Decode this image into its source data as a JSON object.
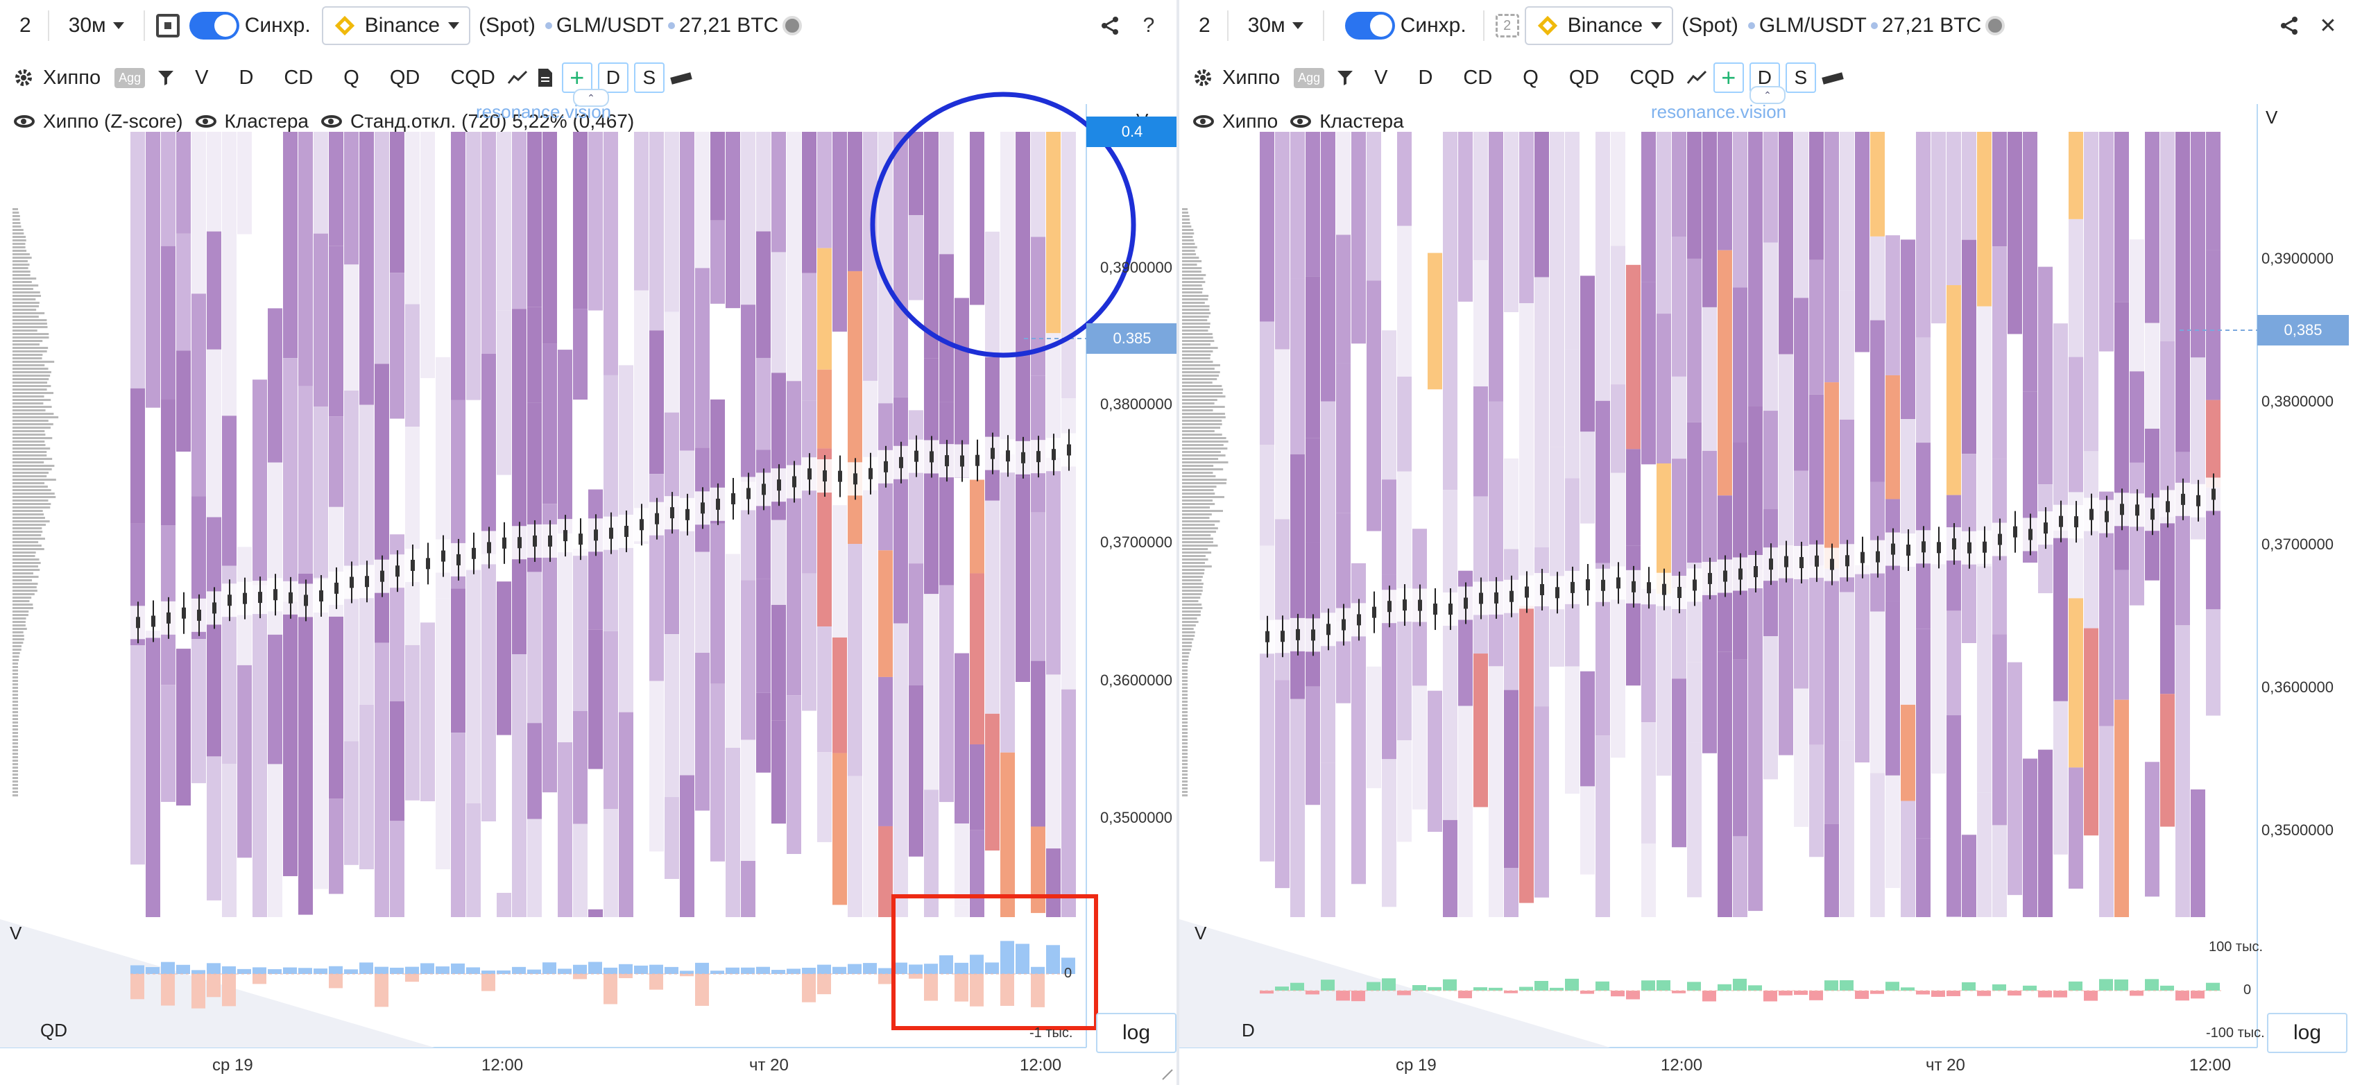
{
  "colors": {
    "accent": "#2a74f0",
    "price_tag_current": "#7aa7dd",
    "price_tag_top": "#1e88e5",
    "annotation_circle": "#1d2fd6",
    "annotation_rect": "#ee2a14",
    "volume_buy": "#9cc6f5",
    "volume_sell": "#f7c6b8",
    "delta_pos": "#84dcb0",
    "delta_neg": "#f49aa2"
  },
  "left": {
    "toolbar": {
      "layout_num": "2",
      "timeframe": "30м",
      "sync_label": "Синхр.",
      "exchange": "Binance",
      "market": "(Spot)",
      "pair": "GLM/USDT",
      "volume": "27,21 BTC",
      "help": "?"
    },
    "toolbar2": {
      "indicator_name": "Хиппо",
      "agg": "Agg",
      "items": [
        "V",
        "D",
        "CD",
        "Q",
        "QD",
        "CQD"
      ],
      "btn_d": "D",
      "btn_s": "S"
    },
    "legend": {
      "item1": "Хиппо (Z-score)",
      "item2": "Кластера",
      "item3": "Станд.откл. (720) 5,22% (0,467)"
    },
    "watermark": "resonance.vision",
    "axis_v": "V",
    "price_labels": [
      "0,3900000",
      "0,3800000",
      "0,3700000",
      "0,3600000",
      "0,3500000"
    ],
    "price_tag_top": "0.4",
    "price_tag_current": "0.385",
    "sub_label_top": "V",
    "sub_label_bottom": "QD",
    "sub_ticks": [
      "0",
      "-1 тыс."
    ],
    "log_label": "log",
    "time_labels": [
      "ср 19",
      "12:00",
      "чт 20",
      "12:00"
    ]
  },
  "right": {
    "toolbar": {
      "layout_num": "2",
      "timeframe": "30м",
      "sync_label": "Синхр.",
      "exchange": "Binance",
      "market": "(Spot)",
      "pair": "GLM/USDT",
      "volume": "27,21 BTC",
      "close": "✕"
    },
    "toolbar2": {
      "indicator_name": "Хиппо",
      "agg": "Agg",
      "items": [
        "V",
        "D",
        "CD",
        "Q",
        "QD",
        "CQD"
      ],
      "btn_d": "D",
      "btn_s": "S"
    },
    "legend": {
      "item1": "Хиппо",
      "item2": "Кластера"
    },
    "watermark": "resonance.vision",
    "axis_v": "V",
    "price_labels": [
      "0,3900000",
      "0,3800000",
      "0,3700000",
      "0,3600000",
      "0,3500000"
    ],
    "price_tag_current": "0,385",
    "sub_label_top": "V",
    "sub_label_bottom": "D",
    "sub_ticks": [
      "100 тыс.",
      "0",
      "-100 тыс."
    ],
    "log_label": "log",
    "time_labels": [
      "ср 19",
      "12:00",
      "чт 20",
      "12:00"
    ]
  }
}
